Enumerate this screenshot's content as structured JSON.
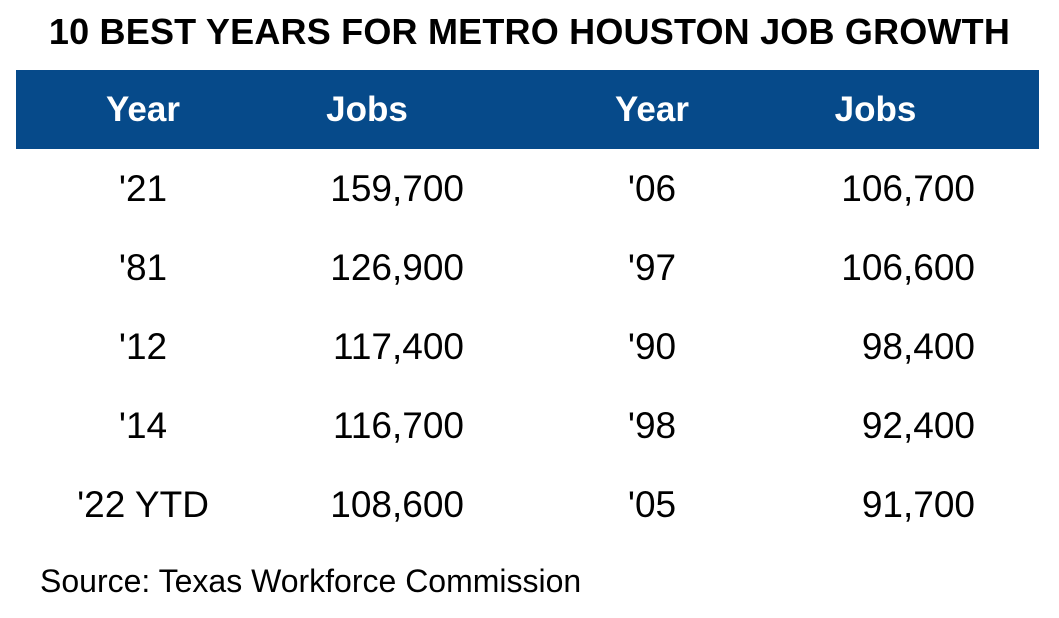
{
  "chart_data": {
    "type": "table",
    "title": "10 BEST YEARS FOR METRO HOUSTON JOB GROWTH",
    "columns": [
      "Year",
      "Jobs",
      "Year",
      "Jobs"
    ],
    "rows": [
      [
        "'21",
        "159,700",
        "'06",
        "106,700"
      ],
      [
        "'81",
        "126,900",
        "'97",
        "106,600"
      ],
      [
        "'12",
        "117,400",
        "'90",
        "98,400"
      ],
      [
        "'14",
        "116,700",
        "'98",
        "92,400"
      ],
      [
        "'22 YTD",
        "108,600",
        "'05",
        "91,700"
      ]
    ],
    "source": "Source: Texas Workforce Commission"
  },
  "colors": {
    "header_bg": "#064a8a",
    "header_text": "#ffffff",
    "body_text": "#000000"
  }
}
